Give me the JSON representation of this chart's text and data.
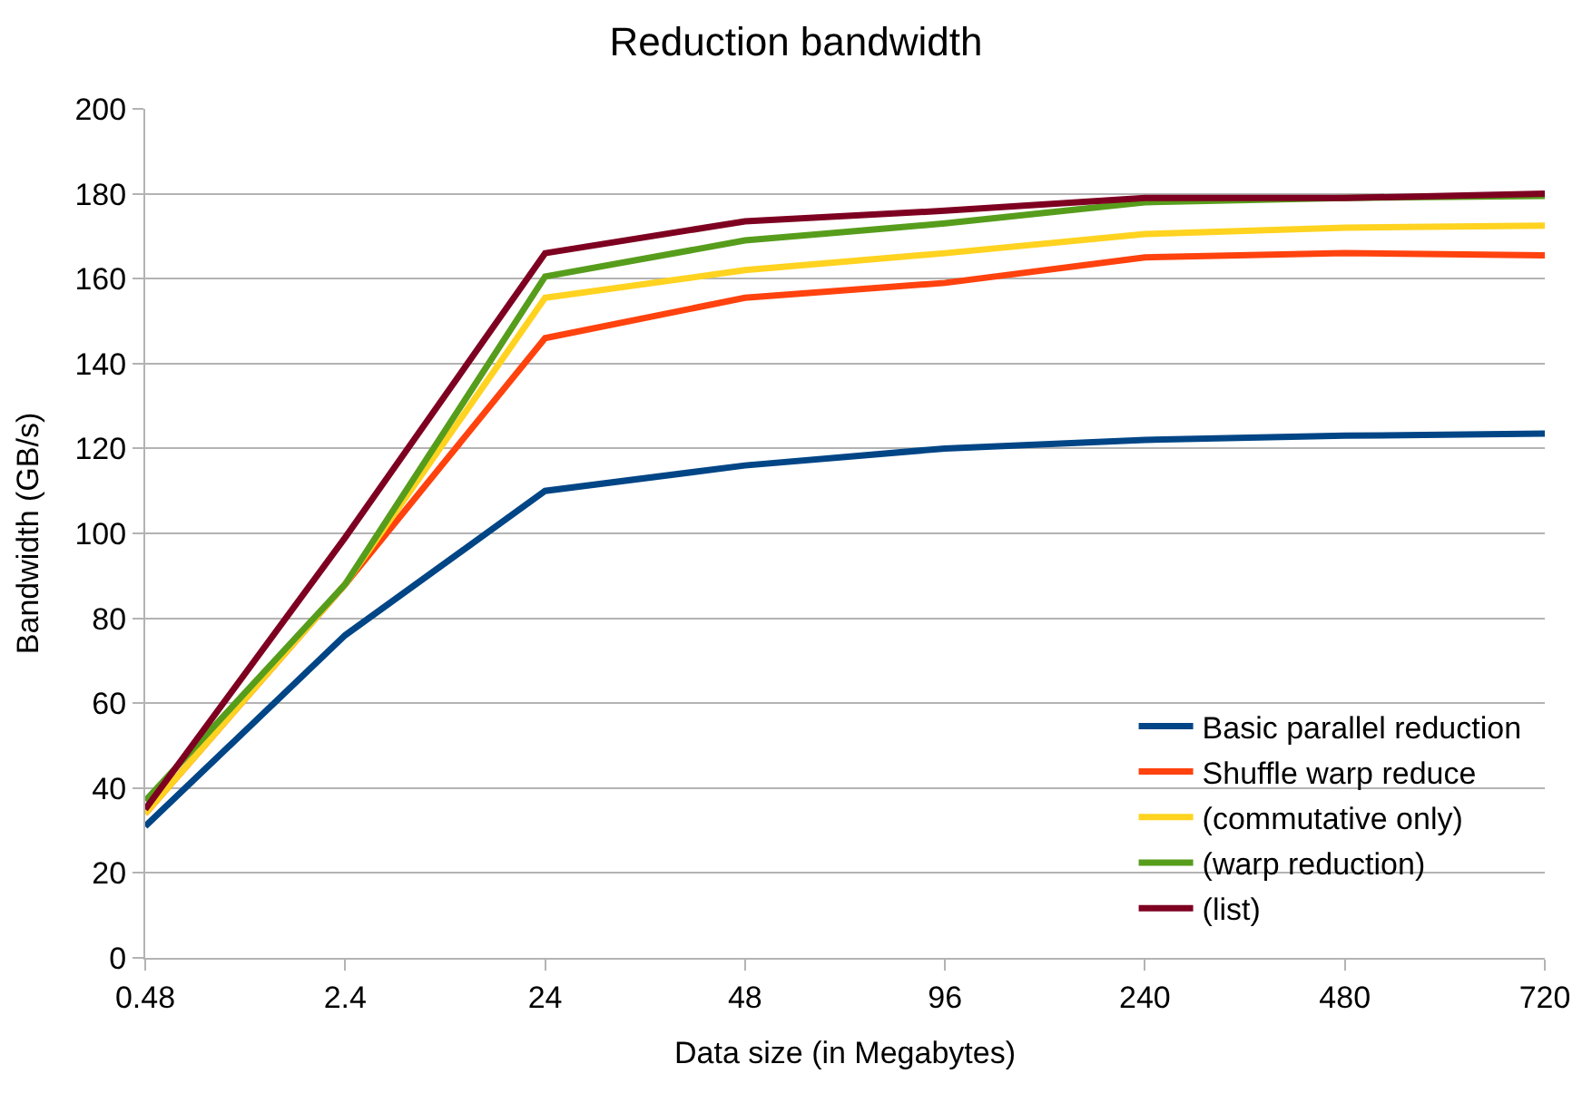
{
  "chart_data": {
    "type": "line",
    "title": "Reduction bandwidth",
    "xlabel": "Data size (in Megabytes)",
    "ylabel": "Bandwidth (GB/s)",
    "categories": [
      "0.48",
      "2.4",
      "24",
      "48",
      "96",
      "240",
      "480",
      "720"
    ],
    "ylim": [
      0,
      200
    ],
    "yticks": [
      0,
      20,
      40,
      60,
      80,
      100,
      120,
      140,
      160,
      180,
      200
    ],
    "grid": "y",
    "legend": "bottom right",
    "marker": "none",
    "line_style": "solid",
    "series": [
      {
        "name": "Basic parallel reduction",
        "color": "#004586",
        "values": [
          31,
          76,
          110,
          116,
          120,
          122,
          123,
          123.5
        ]
      },
      {
        "name": "Shuffle warp reduce",
        "color": "#ff420e",
        "values": [
          34,
          88,
          146,
          155.5,
          159,
          165,
          166,
          165.5
        ]
      },
      {
        "name": "(commutative only)",
        "color": "#ffd320",
        "values": [
          34,
          88,
          155.5,
          162,
          166,
          170.5,
          172,
          172.5
        ]
      },
      {
        "name": "(warp reduction)",
        "color": "#579d1c",
        "values": [
          37,
          88,
          160.5,
          169,
          173,
          178,
          179,
          179.5
        ]
      },
      {
        "name": "(list)",
        "color": "#7e0021",
        "values": [
          35,
          99,
          166,
          173.5,
          176,
          179,
          179,
          180
        ]
      }
    ]
  }
}
